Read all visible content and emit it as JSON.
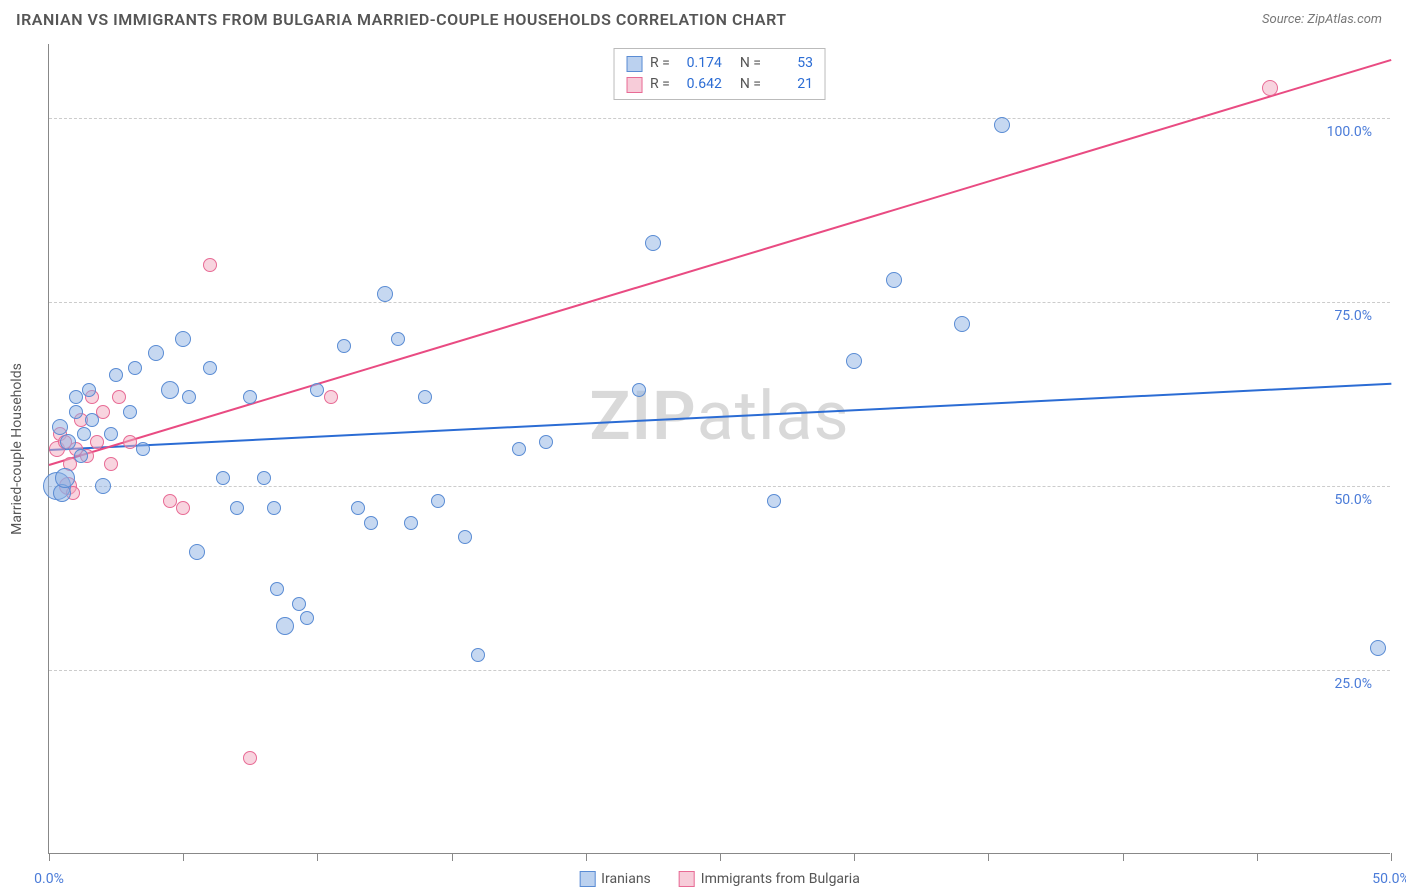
{
  "header": {
    "title": "IRANIAN VS IMMIGRANTS FROM BULGARIA MARRIED-COUPLE HOUSEHOLDS CORRELATION CHART",
    "source": "Source: ZipAtlas.com"
  },
  "chart": {
    "type": "scatter",
    "y_axis_label": "Married-couple Households",
    "xlim": [
      0,
      50
    ],
    "ylim": [
      0,
      110
    ],
    "x_ticks": [
      0,
      5,
      10,
      15,
      20,
      25,
      30,
      35,
      40,
      45,
      50
    ],
    "x_tick_labels": {
      "0": "0.0%",
      "50": "50.0%"
    },
    "y_ticks": [
      25,
      50,
      75,
      100
    ],
    "y_tick_labels": [
      "25.0%",
      "50.0%",
      "75.0%",
      "100.0%"
    ],
    "grid_color": "#cccccc",
    "axis_color": "#888888",
    "tick_label_color": "#4a7bd8",
    "background_color": "#ffffff",
    "watermark": "ZIPatlas",
    "stats": [
      {
        "color": "blue",
        "r_label": "R =",
        "r": "0.174",
        "n_label": "N =",
        "n": "53"
      },
      {
        "color": "pink",
        "r_label": "R =",
        "r": "0.642",
        "n_label": "N =",
        "n": "21"
      }
    ],
    "legend": [
      {
        "color": "blue",
        "label": "Iranians"
      },
      {
        "color": "pink",
        "label": "Immigrants from Bulgaria"
      }
    ],
    "series": {
      "blue": {
        "color_fill": "#8db2e4",
        "color_stroke": "#5a8cd4",
        "regression": {
          "x1": 0,
          "y1": 55,
          "x2": 50,
          "y2": 64,
          "color": "#2b6cd4"
        },
        "points": [
          {
            "x": 0.3,
            "y": 50,
            "r": 14
          },
          {
            "x": 0.4,
            "y": 58,
            "r": 8
          },
          {
            "x": 0.5,
            "y": 49,
            "r": 9
          },
          {
            "x": 0.6,
            "y": 51,
            "r": 10
          },
          {
            "x": 0.7,
            "y": 56,
            "r": 8
          },
          {
            "x": 1.0,
            "y": 60,
            "r": 7
          },
          {
            "x": 1.0,
            "y": 62,
            "r": 7
          },
          {
            "x": 1.2,
            "y": 54,
            "r": 7
          },
          {
            "x": 1.3,
            "y": 57,
            "r": 7
          },
          {
            "x": 1.5,
            "y": 63,
            "r": 7
          },
          {
            "x": 1.6,
            "y": 59,
            "r": 7
          },
          {
            "x": 2.0,
            "y": 50,
            "r": 8
          },
          {
            "x": 2.3,
            "y": 57,
            "r": 7
          },
          {
            "x": 2.5,
            "y": 65,
            "r": 7
          },
          {
            "x": 3.0,
            "y": 60,
            "r": 7
          },
          {
            "x": 3.2,
            "y": 66,
            "r": 7
          },
          {
            "x": 3.5,
            "y": 55,
            "r": 7
          },
          {
            "x": 4.0,
            "y": 68,
            "r": 8
          },
          {
            "x": 4.5,
            "y": 63,
            "r": 9
          },
          {
            "x": 5.0,
            "y": 70,
            "r": 8
          },
          {
            "x": 5.2,
            "y": 62,
            "r": 7
          },
          {
            "x": 5.5,
            "y": 41,
            "r": 8
          },
          {
            "x": 6.0,
            "y": 66,
            "r": 7
          },
          {
            "x": 6.5,
            "y": 51,
            "r": 7
          },
          {
            "x": 7.0,
            "y": 47,
            "r": 7
          },
          {
            "x": 7.5,
            "y": 62,
            "r": 7
          },
          {
            "x": 8.0,
            "y": 51,
            "r": 7
          },
          {
            "x": 8.4,
            "y": 47,
            "r": 7
          },
          {
            "x": 8.5,
            "y": 36,
            "r": 7
          },
          {
            "x": 8.8,
            "y": 31,
            "r": 9
          },
          {
            "x": 9.3,
            "y": 34,
            "r": 7
          },
          {
            "x": 9.6,
            "y": 32,
            "r": 7
          },
          {
            "x": 10.0,
            "y": 63,
            "r": 7
          },
          {
            "x": 11.0,
            "y": 69,
            "r": 7
          },
          {
            "x": 11.5,
            "y": 47,
            "r": 7
          },
          {
            "x": 12.0,
            "y": 45,
            "r": 7
          },
          {
            "x": 12.5,
            "y": 76,
            "r": 8
          },
          {
            "x": 13.0,
            "y": 70,
            "r": 7
          },
          {
            "x": 13.5,
            "y": 45,
            "r": 7
          },
          {
            "x": 14.0,
            "y": 62,
            "r": 7
          },
          {
            "x": 14.5,
            "y": 48,
            "r": 7
          },
          {
            "x": 15.5,
            "y": 43,
            "r": 7
          },
          {
            "x": 16.0,
            "y": 27,
            "r": 7
          },
          {
            "x": 17.5,
            "y": 55,
            "r": 7
          },
          {
            "x": 18.5,
            "y": 56,
            "r": 7
          },
          {
            "x": 22.0,
            "y": 63,
            "r": 7
          },
          {
            "x": 22.5,
            "y": 83,
            "r": 8
          },
          {
            "x": 27.0,
            "y": 48,
            "r": 7
          },
          {
            "x": 30.0,
            "y": 67,
            "r": 8
          },
          {
            "x": 31.5,
            "y": 78,
            "r": 8
          },
          {
            "x": 34.0,
            "y": 72,
            "r": 8
          },
          {
            "x": 35.5,
            "y": 99,
            "r": 8
          },
          {
            "x": 49.5,
            "y": 28,
            "r": 8
          }
        ]
      },
      "pink": {
        "color_fill": "#f2aac0",
        "color_stroke": "#e86b95",
        "regression": {
          "x1": 0,
          "y1": 53,
          "x2": 50,
          "y2": 108,
          "color": "#e94b82"
        },
        "points": [
          {
            "x": 0.3,
            "y": 55,
            "r": 8
          },
          {
            "x": 0.4,
            "y": 57,
            "r": 7
          },
          {
            "x": 0.6,
            "y": 56,
            "r": 7
          },
          {
            "x": 0.7,
            "y": 50,
            "r": 9
          },
          {
            "x": 0.8,
            "y": 53,
            "r": 7
          },
          {
            "x": 0.9,
            "y": 49,
            "r": 7
          },
          {
            "x": 1.0,
            "y": 55,
            "r": 7
          },
          {
            "x": 1.2,
            "y": 59,
            "r": 7
          },
          {
            "x": 1.4,
            "y": 54,
            "r": 7
          },
          {
            "x": 1.6,
            "y": 62,
            "r": 7
          },
          {
            "x": 1.8,
            "y": 56,
            "r": 7
          },
          {
            "x": 2.0,
            "y": 60,
            "r": 7
          },
          {
            "x": 2.3,
            "y": 53,
            "r": 7
          },
          {
            "x": 2.6,
            "y": 62,
            "r": 7
          },
          {
            "x": 3.0,
            "y": 56,
            "r": 7
          },
          {
            "x": 4.5,
            "y": 48,
            "r": 7
          },
          {
            "x": 5.0,
            "y": 47,
            "r": 7
          },
          {
            "x": 6.0,
            "y": 80,
            "r": 7
          },
          {
            "x": 7.5,
            "y": 13,
            "r": 7
          },
          {
            "x": 10.5,
            "y": 62,
            "r": 7
          },
          {
            "x": 45.5,
            "y": 104,
            "r": 8
          }
        ]
      }
    }
  }
}
